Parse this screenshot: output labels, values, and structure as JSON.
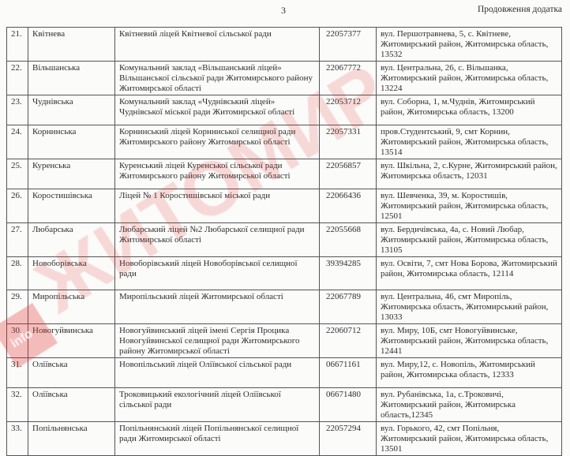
{
  "header": {
    "page_number": "3",
    "appendix_label": "Продовження додатка"
  },
  "rows": [
    {
      "num": "21.",
      "community": "Квітнева",
      "school": "Квітневий ліцей Квітневої сільської ради",
      "code": "22057377",
      "address": "вул. Першотравнева, 5, с. Квітневе, Житомирський район, Житомирська область, 13532"
    },
    {
      "num": "22.",
      "community": "Вільшанська",
      "school": "Комунальний заклад «Вільшанський ліцей» Вільшанської сільської ради Житомирського району Житомирської області",
      "code": "22067772",
      "address": "вул. Центральна, 26, с. Вільшанка, Житомирський район, Житомирська область, 13224"
    },
    {
      "num": "23.",
      "community": "Чуднівська",
      "school": "Комунальний заклад «Чуднівський ліцей» Чуднівської міської ради Житомирської області",
      "code": "22053712",
      "address": "вул. Соборна, 1, м.Чуднів, Житомирський район, Житомирська область, 13200"
    },
    {
      "num": "24.",
      "community": "Корнинська",
      "school": "Корнинський ліцей Корнинської селищної ради Житомирського району Житомирської області",
      "code": "22057331",
      "address": "пров.Студентський, 9, смт Корнин, Житомирський район, Житомирська область, 13514"
    },
    {
      "num": "25.",
      "community": "Куренська",
      "school": "Куренський ліцей Куренської сільської ради Житомирського району Житомирської області",
      "code": "22056857",
      "address": "вул. Шкільна, 2, с.Курне, Житомирський район, Житомирська область, 12031"
    },
    {
      "num": "26.",
      "community": "Коростишівська",
      "school": "Ліцей № 1  Коростишівської міської ради",
      "code": "22066436",
      "address": "вул. Шевченка, 39, м. Коростишів, Житомирський район, Житомирська область, 12501"
    },
    {
      "num": "27.",
      "community": "Любарська",
      "school": "Любарський ліцей №2 Любарської селищної ради Житомирської області",
      "code": "22055668",
      "address": "вул. Бердичівська, 4а, с. Новий Любар, Житомирський район, Житомирська область, 13105"
    },
    {
      "num": "28.",
      "community": "Новоборівська",
      "school": "Новоборівський ліцей Новоборівської селищної ради",
      "code": "39394285",
      "address": "вул. Освіти, 7, смт Нова Борова, Житомирський район, Житомирська область, 12114"
    },
    {
      "num": "29.",
      "community": "Миропільська",
      "school": "Миропільський ліцей Житомирської області",
      "code": "22067789",
      "address": "вул. Центральна, 46, смт Миропіль, Житомирська область, Житомирський район, 13033"
    },
    {
      "num": "30.",
      "community": "Новогуйвинська",
      "school": "Новогуйвинський ліцей імені Сергія Процика Новогуйвинської селищної ради Житомирського району Житомирської області",
      "code": "22060712",
      "address": "вул. Миру, 10Б, смт Новогуйвинське, Житомирський район, Житомирська область, 12441"
    },
    {
      "num": "31.",
      "community": "Оліївська",
      "school": "Новопільський ліцей Оліївської сільської ради",
      "code": "06671161",
      "address": "вул. Миру,12, с. Новопіль, Житомирський район, Житомирська область, 12333"
    },
    {
      "num": "32.",
      "community": "Оліївська",
      "school": "Троковицький екологічний ліцей Оліївської сільської ради",
      "code": "06671480",
      "address": "вул. Рубанівська, 1а, с.Троковичі, Житомирський район, Житомирська область,12345"
    },
    {
      "num": "33.",
      "community": "Попільнянська",
      "school": "Попільнянський ліцей Попільнянської селищної ради Житомирської області",
      "code": "22057294",
      "address": "вул. Горького, 42, смт Попільня, Житомирський район, Житомирська область, 13501"
    }
  ],
  "watermark": {
    "text": "ЖИТОМИР",
    "logo": "info",
    "color": "#e12828"
  }
}
